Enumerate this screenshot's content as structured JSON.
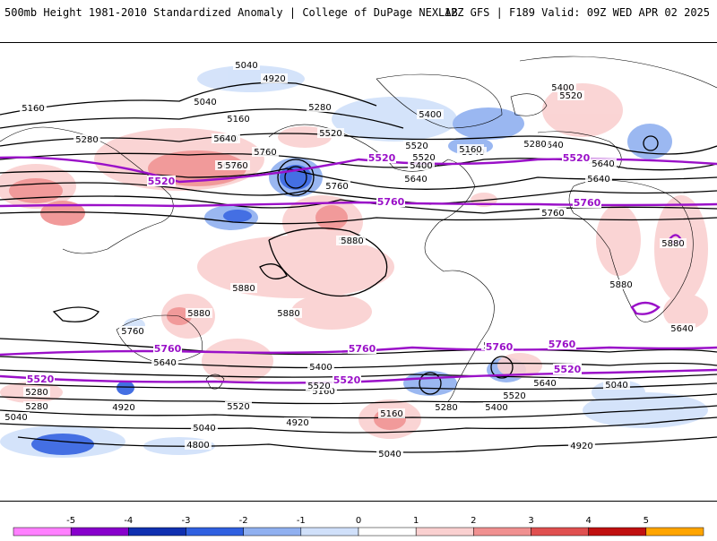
{
  "header": {
    "left_title": "500mb Height 1981-2010 Standardized Anomaly | College of DuPage NEXLAB",
    "right_title": "12Z GFS | F189 Valid: 09Z WED APR 02 2025"
  },
  "contour_labels": {
    "black": [
      "5040",
      "4920",
      "5040",
      "5160",
      "5160",
      "5280",
      "5280",
      "5400",
      "5520",
      "5640",
      "5760",
      "5640",
      "5400",
      "5520",
      "5040",
      "5400",
      "5520",
      "5640",
      "5760",
      "5160",
      "5400",
      "5520",
      "5280",
      "5640",
      "5640",
      "5760",
      "5880",
      "5880",
      "5880",
      "5880",
      "5880",
      "5760",
      "5760",
      "5640",
      "5640",
      "5400",
      "5160",
      "5520",
      "5280",
      "5040",
      "5280",
      "5520",
      "5040",
      "4920",
      "4920",
      "4800",
      "5040",
      "5160",
      "5280",
      "5400",
      "5520",
      "5640",
      "5760",
      "4920",
      "5040",
      "5640",
      "5760",
      "5880",
      "5880"
    ],
    "purple": [
      "5520",
      "5760",
      "5520",
      "5760",
      "5520",
      "5760",
      "5760",
      "5760",
      "5760",
      "5520",
      "5520",
      "5520"
    ]
  },
  "colorbar": {
    "ticks": [
      "-5",
      "-4",
      "-3",
      "-2",
      "-1",
      "0",
      "1",
      "2",
      "3",
      "4",
      "5"
    ],
    "colors": [
      "#ff80ff",
      "#8800cc",
      "#1030b0",
      "#3060e0",
      "#90b0f0",
      "#d0e0fa",
      "#ffffff",
      "#fad0d0",
      "#f09090",
      "#e05050",
      "#c01010",
      "#ffa500"
    ]
  }
}
